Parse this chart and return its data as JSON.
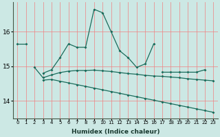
{
  "xlabel": "Humidex (Indice chaleur)",
  "x_values": [
    0,
    1,
    2,
    3,
    4,
    5,
    6,
    7,
    8,
    9,
    10,
    11,
    12,
    13,
    14,
    15,
    16,
    17,
    18,
    19,
    20,
    21,
    22,
    23
  ],
  "upper_line": [
    15.65,
    15.65,
    null,
    null,
    null,
    null,
    null,
    null,
    null,
    null,
    null,
    null,
    null,
    null,
    null,
    null,
    null,
    null,
    null,
    null,
    null,
    null,
    null,
    null
  ],
  "upper_line2": [
    null,
    null,
    null,
    14.8,
    14.9,
    15.25,
    15.65,
    15.55,
    15.55,
    16.65,
    16.55,
    16.0,
    15.45,
    15.25,
    14.97,
    15.07,
    15.65,
    null,
    null,
    null,
    null,
    null,
    null,
    null
  ],
  "upper_line3": [
    null,
    null,
    null,
    null,
    null,
    null,
    null,
    null,
    null,
    null,
    null,
    null,
    null,
    null,
    null,
    null,
    null,
    14.83,
    14.83,
    14.83,
    14.83,
    14.83,
    14.9,
    null
  ],
  "middle_line": [
    null,
    null,
    14.97,
    14.67,
    14.75,
    14.82,
    14.86,
    14.88,
    14.88,
    14.89,
    14.87,
    14.85,
    14.82,
    14.79,
    14.77,
    14.74,
    14.72,
    14.71,
    14.69,
    14.67,
    14.64,
    14.62,
    14.6,
    14.58
  ],
  "lower_line": [
    null,
    null,
    null,
    14.6,
    14.62,
    14.57,
    14.52,
    14.47,
    14.42,
    14.37,
    14.32,
    14.27,
    14.22,
    14.17,
    14.12,
    14.07,
    14.02,
    13.97,
    13.92,
    13.87,
    13.82,
    13.77,
    13.72,
    13.67
  ],
  "ylim": [
    13.5,
    16.85
  ],
  "yticks": [
    14,
    15,
    16
  ],
  "bg_color": "#cce8e4",
  "grid_color": "#f08080",
  "line_color": "#1a6b5a",
  "markersize": 2.0,
  "linewidth": 0.9
}
